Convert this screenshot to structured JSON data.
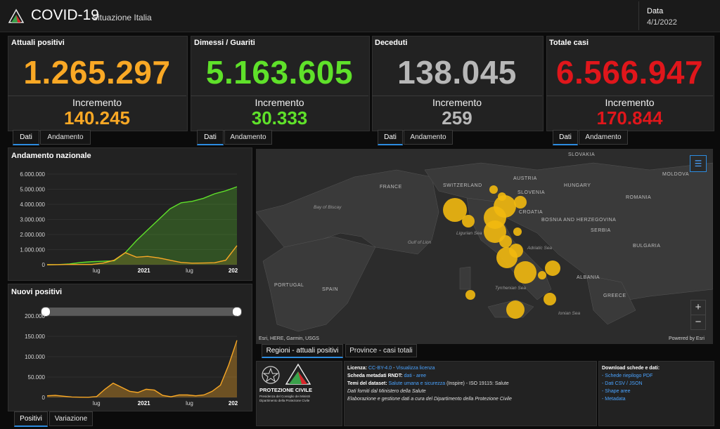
{
  "header": {
    "title": "COVID-19",
    "subtitle": "Situazione Italia",
    "date_label": "Data",
    "date_value": "4/1/2022"
  },
  "colors": {
    "positivi": "#f9a825",
    "guariti": "#5fe12a",
    "deceduti": "#b8b8b8",
    "totale": "#e0161b",
    "accent": "#2d8ce0"
  },
  "kpis": [
    {
      "title": "Attuali positivi",
      "value": "1.265.297",
      "inc_label": "Incremento",
      "inc_value": "140.245",
      "tabs": [
        "Dati",
        "Andamento"
      ]
    },
    {
      "title": "Dimessi / Guariti",
      "value": "5.163.605",
      "inc_label": "Incremento",
      "inc_value": "30.333",
      "tabs": [
        "Dati",
        "Andamento"
      ]
    },
    {
      "title": "Deceduti",
      "value": "138.045",
      "inc_label": "Incremento",
      "inc_value": "259",
      "tabs": [
        "Dati",
        "Andamento"
      ]
    },
    {
      "title": "Totale casi",
      "value": "6.566.947",
      "inc_label": "Incremento",
      "inc_value": "170.844",
      "tabs": [
        "Dati",
        "Andamento"
      ]
    }
  ],
  "andamento": {
    "title": "Andamento nazionale",
    "yticks": [
      "6.000.000",
      "5.000.000",
      "4.000.000",
      "3.000.000",
      "2.000.000",
      "1.000.000",
      "0"
    ],
    "xticks": [
      "lug",
      "2021",
      "lug",
      "202"
    ]
  },
  "nuovi": {
    "title": "Nuovi positivi",
    "yticks": [
      "200.000",
      "150.000",
      "100.000",
      "50.000",
      "0"
    ],
    "xticks": [
      "lug",
      "2021",
      "lug",
      "202"
    ],
    "tabs": [
      "Positivi",
      "Variazione"
    ]
  },
  "chart_data": [
    {
      "type": "area",
      "title": "Andamento nazionale",
      "ylim": [
        0,
        6000000
      ],
      "x_ticks": [
        "lug",
        "2021",
        "lug",
        "202"
      ],
      "series": [
        {
          "values": [
            0,
            10000,
            50000,
            150000,
            200000,
            230000,
            260000,
            800000,
            1600000,
            2300000,
            3000000,
            3700000,
            4100000,
            4200000,
            4400000,
            4700000,
            4900000,
            5163605
          ]
        },
        {
          "values": [
            0,
            5000,
            20000,
            15000,
            15000,
            100000,
            300000,
            800000,
            500000,
            550000,
            450000,
            300000,
            150000,
            100000,
            110000,
            130000,
            300000,
            1265297
          ]
        }
      ]
    },
    {
      "type": "area",
      "title": "Nuovi positivi",
      "ylim": [
        0,
        200000
      ],
      "x_ticks": [
        "lug",
        "2021",
        "lug",
        "202"
      ],
      "series": [
        {
          "values": [
            4000,
            5000,
            3000,
            1000,
            500,
            300,
            2000,
            20000,
            35000,
            25000,
            15000,
            12000,
            20000,
            18000,
            5000,
            1500,
            6000,
            6000,
            4000,
            6000,
            15000,
            30000,
            80000,
            140245
          ]
        }
      ]
    }
  ],
  "map": {
    "labels": [
      "FRANCE",
      "SWITZERLAND",
      "AUSTRIA",
      "SLOVENIA",
      "CROATIA",
      "HUNGARY",
      "ROMANIA",
      "MOLDOVA",
      "SLOVAKIA",
      "BOSNIA AND HERZEGOVINA",
      "SERBIA",
      "BULGARIA",
      "ALBANIA",
      "GREECE",
      "PORTUGAL",
      "SPAIN"
    ],
    "sea_labels": [
      "Bay of Biscay",
      "Gulf of Lion",
      "Ligurian Sea",
      "Adriatic Sea",
      "Tyrrhenian Sea",
      "Ionian Sea"
    ],
    "attribution": "Esri, HERE, Garmin, USGS",
    "powered_by": "Powered by Esri",
    "zoom_in": "+",
    "zoom_out": "−",
    "tabs": [
      "Regioni - attuali positivi",
      "Province - casi totali"
    ]
  },
  "footer": {
    "org_name": "PROTEZIONE CIVILE",
    "org_sub1": "Presidenza del Consiglio dei Ministri",
    "org_sub2": "Dipartimento della Protezione Civile",
    "licenza_label": "Licenza:",
    "licenza_link": "CC-BY-4.0",
    "licenza_sep": " - ",
    "licenza_view": "Visualizza licenza",
    "metadati_label": "Scheda metadati RNDT:",
    "metadati_links": "dati - aree",
    "temi_label": "Temi del dataset:",
    "temi_link": "Salute umana e sicurezza",
    "temi_rest": " (Inspire) - ISO 19115: Salute",
    "fonte": "Dati forniti dal Ministero della Salute",
    "elaborazione": "Elaborazione e gestione dati a cura del Dipartimento della Protezione Civile",
    "download_title": "Download schede e dati:",
    "downloads": [
      "- Schede riepilogo PDF",
      "- Dati CSV / JSON",
      "- Shape aree",
      "- Metadata"
    ]
  }
}
